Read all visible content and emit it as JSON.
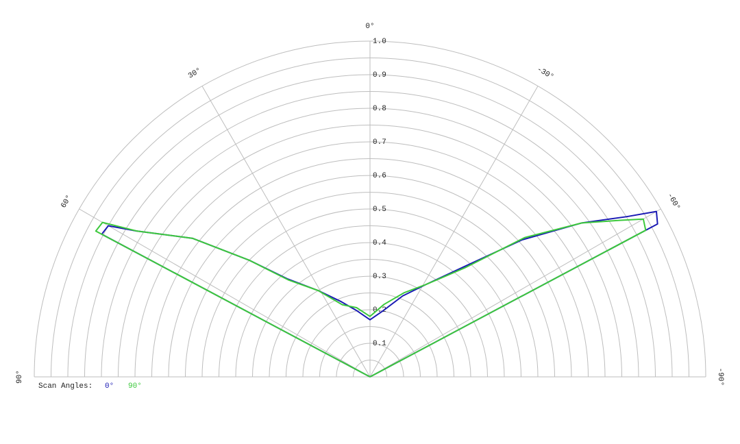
{
  "chart_data": {
    "type": "polar",
    "theta": [
      -90,
      -80,
      -70,
      -64,
      -62,
      -60,
      -58,
      -54,
      -48,
      -41,
      -31,
      -22,
      -11,
      0,
      11,
      21,
      31,
      40,
      46,
      52,
      58,
      60,
      62,
      64,
      70,
      80,
      90
    ],
    "series": [
      {
        "name": "0°",
        "color": "#1a1ab4",
        "values": [
          0,
          0,
          0,
          0,
          0.97,
          0.985,
          0.9,
          0.78,
          0.61,
          0.44,
          0.32,
          0.26,
          0.2,
          0.17,
          0.2,
          0.24,
          0.3,
          0.38,
          0.5,
          0.67,
          0.82,
          0.9,
          0.905,
          0,
          0,
          0,
          0
        ]
      },
      {
        "name": "90°",
        "color": "#3cc83c",
        "values": [
          0,
          0,
          0,
          0,
          0.93,
          0.94,
          0.88,
          0.78,
          0.62,
          0.43,
          0.32,
          0.27,
          0.22,
          0.18,
          0.21,
          0.23,
          0.3,
          0.376,
          0.5,
          0.67,
          0.82,
          0.92,
          0.925,
          0,
          0,
          0,
          0
        ]
      }
    ],
    "rlim": [
      0,
      1
    ],
    "rticks": [
      0.1,
      0.2,
      0.3,
      0.4,
      0.5,
      0.6,
      0.7,
      0.8,
      0.9,
      {
        "value": 1,
        "label": "1.0"
      }
    ],
    "minor_rticks": [
      0.05,
      0.15,
      0.25,
      0.35,
      0.45,
      0.55,
      0.65,
      0.75,
      0.85,
      0.95
    ],
    "thetaticks": [
      {
        "value": 0,
        "label": "0°"
      },
      {
        "value": 30,
        "label": "30°"
      },
      {
        "value": 60,
        "label": "60°"
      },
      {
        "value": 90,
        "label": "90°"
      },
      {
        "value": -30,
        "label": "-30°"
      },
      {
        "value": -60,
        "label": "-60°"
      },
      {
        "value": -90,
        "label": "-90°"
      }
    ],
    "legend_title": "Scan Angles:",
    "grid": true
  }
}
